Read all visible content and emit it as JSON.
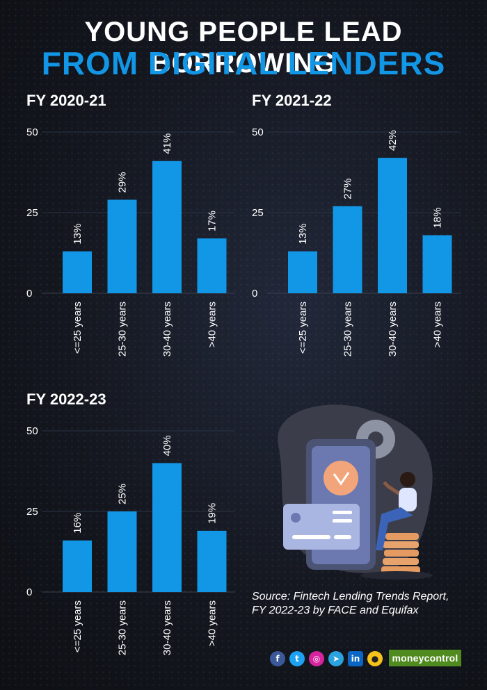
{
  "title_line1": "YOUNG PEOPLE LEAD BORROWING",
  "title_line2": "FROM DIGITAL LENDERS",
  "source": "Source: Fintech Lending Trends Report, FY 2022-23 by FACE and Equifax",
  "brand": "moneycontrol",
  "social_icons": [
    "facebook-icon",
    "twitter-icon",
    "instagram-icon",
    "telegram-icon",
    "linkedin-icon",
    "koo-icon"
  ],
  "colors": {
    "bar": "#1296e6",
    "title_accent": "#1296e6",
    "background": "#14171f",
    "brand": "#4f8b1f"
  },
  "chart_data": [
    {
      "type": "bar",
      "title": "FY 2020-21",
      "categories": [
        "<=25 years",
        "25-30 years",
        "30-40 years",
        ">40 years"
      ],
      "values": [
        13,
        29,
        41,
        17
      ],
      "value_labels": [
        "13%",
        "29%",
        "41%",
        "17%"
      ],
      "yticks": [
        "0",
        "25",
        "50"
      ],
      "ylim": [
        0,
        50
      ],
      "grid": true
    },
    {
      "type": "bar",
      "title": "FY 2021-22",
      "categories": [
        "<=25 years",
        "25-30 years",
        "30-40 years",
        ">40 years"
      ],
      "values": [
        13,
        27,
        42,
        18
      ],
      "value_labels": [
        "13%",
        "27%",
        "42%",
        "18%"
      ],
      "yticks": [
        "0",
        "25",
        "50"
      ],
      "ylim": [
        0,
        50
      ],
      "grid": true
    },
    {
      "type": "bar",
      "title": "FY 2022-23",
      "categories": [
        "<=25 years",
        "25-30 years",
        "30-40 years",
        ">40 years"
      ],
      "values": [
        16,
        25,
        40,
        19
      ],
      "value_labels": [
        "16%",
        "25%",
        "40%",
        "19%"
      ],
      "yticks": [
        "0",
        "25",
        "50"
      ],
      "ylim": [
        0,
        50
      ],
      "grid": true
    }
  ]
}
